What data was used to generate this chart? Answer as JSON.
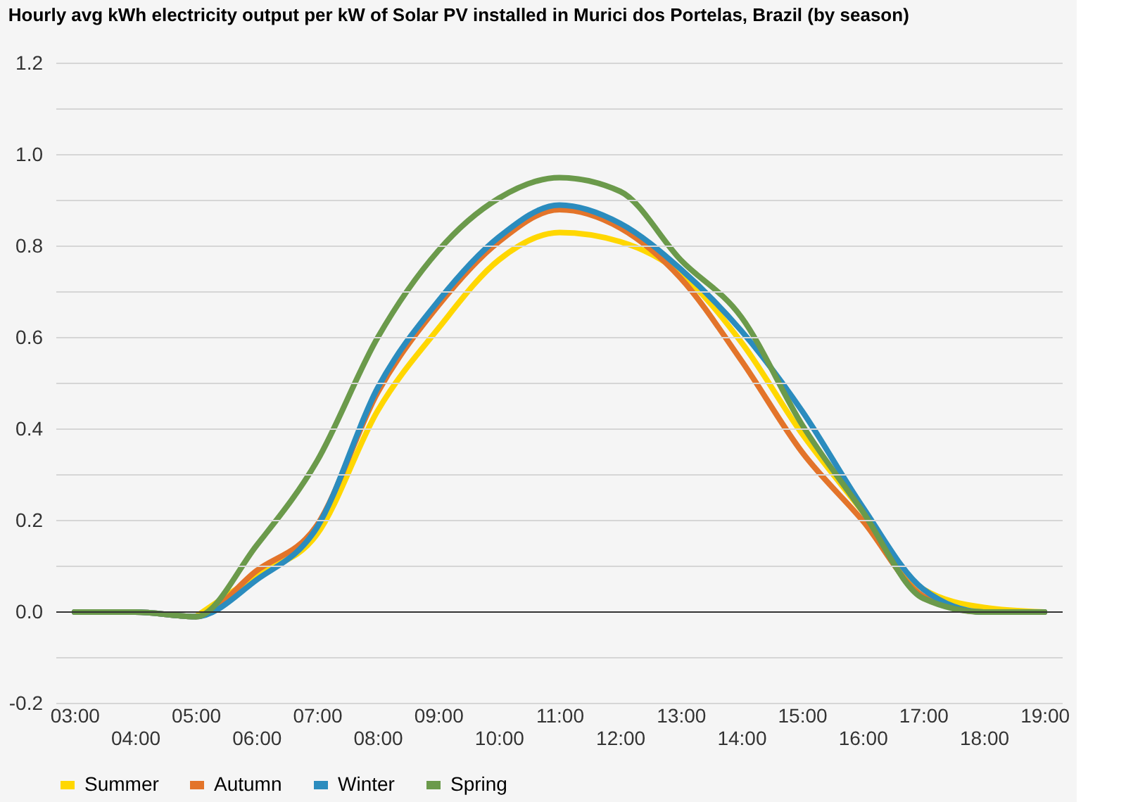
{
  "chart_data": {
    "type": "line",
    "title": "Hourly avg kWh electricity output per kW of Solar PV installed in Murici dos Portelas, Brazil (by season)",
    "categories": [
      "03:00",
      "04:00",
      "05:00",
      "06:00",
      "07:00",
      "08:00",
      "09:00",
      "10:00",
      "11:00",
      "12:00",
      "13:00",
      "14:00",
      "15:00",
      "16:00",
      "17:00",
      "18:00",
      "19:00"
    ],
    "series": [
      {
        "name": "Summer",
        "color": "#ffd700",
        "values": [
          null,
          null,
          -0.01,
          0.08,
          0.17,
          0.44,
          0.62,
          0.77,
          0.83,
          0.81,
          0.74,
          0.59,
          0.39,
          0.22,
          0.05,
          0.01,
          0
        ]
      },
      {
        "name": "Autumn",
        "color": "#e3742a",
        "values": [
          0,
          0,
          -0.01,
          0.09,
          0.19,
          0.48,
          0.67,
          0.81,
          0.88,
          0.84,
          0.73,
          0.55,
          0.35,
          0.2,
          0.035,
          0,
          0
        ]
      },
      {
        "name": "Winter",
        "color": "#2b8cbe",
        "values": [
          0,
          0,
          -0.01,
          0.07,
          0.185,
          0.49,
          0.68,
          0.82,
          0.89,
          0.85,
          0.75,
          0.615,
          0.44,
          0.23,
          0.05,
          0,
          0
        ]
      },
      {
        "name": "Spring",
        "color": "#6b9a4b",
        "values": [
          0,
          0,
          -0.01,
          0.145,
          0.33,
          0.6,
          0.79,
          0.905,
          0.95,
          0.92,
          0.77,
          0.645,
          0.41,
          0.22,
          0.03,
          0,
          0
        ]
      }
    ],
    "ylim": [
      -0.2,
      1.2
    ],
    "yticks": [
      -0.2,
      {
        "value": -0.1,
        "label": null
      },
      {
        "value": 0,
        "label": "0.0"
      },
      {
        "value": 0.1,
        "label": null
      },
      0.2,
      {
        "value": 0.3,
        "label": null
      },
      0.4,
      {
        "value": 0.5,
        "label": null
      },
      0.6,
      {
        "value": 0.7,
        "label": null
      },
      0.8,
      {
        "value": 0.9,
        "label": null
      },
      {
        "value": 1,
        "label": "1.0"
      },
      {
        "value": 1.1,
        "label": null
      },
      1.2
    ],
    "ref_lines": [
      {
        "axis": "y",
        "value": 0,
        "color": "#333333"
      }
    ],
    "grid": "y",
    "legend": "bottom",
    "marker": "none",
    "line_style": "solid"
  }
}
